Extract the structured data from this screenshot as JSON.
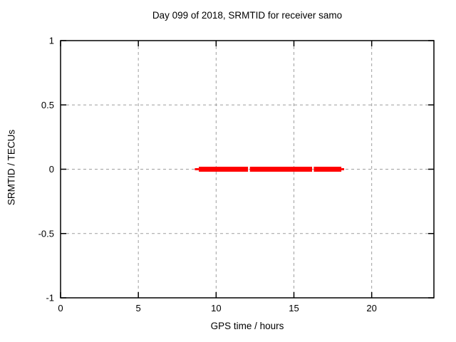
{
  "figure": {
    "background": "#ffffff",
    "border_color": "#000000",
    "grid_color": "#9f9f9f",
    "grid_style": "dashed"
  },
  "chart_data": {
    "type": "line",
    "title": "Day 099 of 2018, SRMTID for receiver samo",
    "xlabel": "GPS time / hours",
    "ylabel": "SRMTID / TECUs",
    "xlim": [
      0,
      24
    ],
    "ylim": [
      -1,
      1
    ],
    "xticks": {
      "values": [
        0,
        5,
        10,
        15,
        20
      ],
      "labels": [
        "0",
        "5",
        "10",
        "15",
        "20"
      ]
    },
    "yticks": {
      "values": [
        1,
        0.5,
        0,
        -0.5,
        -1
      ],
      "labels": [
        "1",
        "0.5",
        "0",
        "-0.5",
        "-1"
      ]
    },
    "grid": true,
    "legend": "none",
    "series": [
      {
        "name": "SRMTID",
        "color": "#ff0000",
        "y_value": 0,
        "thick_segments_hours": [
          [
            8.89,
            12.05
          ],
          [
            12.17,
            16.17
          ],
          [
            16.28,
            18.05
          ]
        ],
        "thin_segments_hours": [
          [
            8.63,
            8.89
          ],
          [
            18.05,
            18.23
          ]
        ]
      }
    ]
  }
}
